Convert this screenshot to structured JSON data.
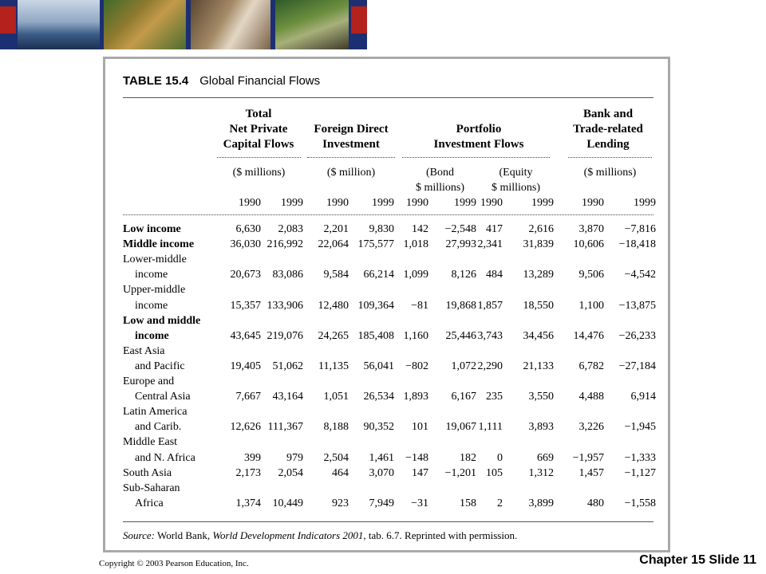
{
  "footer": {
    "copyright": "Copyright © 2003 Pearson Education, Inc.",
    "chapter": "Chapter 15 Slide 11"
  },
  "table": {
    "number": "TABLE 15.4",
    "title": "Global Financial Flows",
    "groups": [
      {
        "l1": "Total",
        "l2": "Net Private",
        "l3": "Capital Flows",
        "unit": "($ millions)"
      },
      {
        "l1": "",
        "l2": "Foreign Direct",
        "l3": "Investment",
        "unit": "($ million)"
      },
      {
        "l1": "",
        "l2": "Portfolio",
        "l3": "Investment Flows",
        "unit1a": "(Bond",
        "unit1b": "$ millions)",
        "unit2a": "(Equity",
        "unit2b": "$ millions)"
      },
      {
        "l1": "Bank and",
        "l2": "Trade-related",
        "l3": "Lending",
        "unit": "($ millions)"
      }
    ],
    "years": [
      "1990",
      "1999",
      "1990",
      "1999",
      "1990",
      "1999",
      "1990",
      "1999",
      "1990",
      "1999"
    ],
    "rows": [
      {
        "label": "Low income",
        "bold": true,
        "indent": false,
        "values": [
          "6,630",
          "2,083",
          "2,201",
          "9,830",
          "142",
          "−2,548",
          "417",
          "2,616",
          "3,870",
          "−7,816"
        ]
      },
      {
        "label": "Middle income",
        "bold": true,
        "indent": false,
        "values": [
          "36,030",
          "216,992",
          "22,064",
          "175,577",
          "1,018",
          "27,993",
          "2,341",
          "31,839",
          "10,606",
          "−18,418"
        ]
      },
      {
        "label": "Lower-middle",
        "bold": false,
        "indent": false,
        "values": []
      },
      {
        "label": "income",
        "bold": false,
        "indent": true,
        "values": [
          "20,673",
          "83,086",
          "9,584",
          "66,214",
          "1,099",
          "8,126",
          "484",
          "13,289",
          "9,506",
          "−4,542"
        ]
      },
      {
        "label": "Upper-middle",
        "bold": false,
        "indent": false,
        "values": []
      },
      {
        "label": "income",
        "bold": false,
        "indent": true,
        "values": [
          "15,357",
          "133,906",
          "12,480",
          "109,364",
          "−81",
          "19,868",
          "1,857",
          "18,550",
          "1,100",
          "−13,875"
        ]
      },
      {
        "label": "Low and middle",
        "bold": true,
        "indent": false,
        "values": []
      },
      {
        "label": "income",
        "bold": true,
        "indent": true,
        "values": [
          "43,645",
          "219,076",
          "24,265",
          "185,408",
          "1,160",
          "25,446",
          "3,743",
          "34,456",
          "14,476",
          "−26,233"
        ]
      },
      {
        "label": "East Asia",
        "bold": false,
        "indent": false,
        "values": []
      },
      {
        "label": "and Pacific",
        "bold": false,
        "indent": true,
        "values": [
          "19,405",
          "51,062",
          "11,135",
          "56,041",
          "−802",
          "1,072",
          "2,290",
          "21,133",
          "6,782",
          "−27,184"
        ]
      },
      {
        "label": "Europe and",
        "bold": false,
        "indent": false,
        "values": []
      },
      {
        "label": "Central Asia",
        "bold": false,
        "indent": true,
        "values": [
          "7,667",
          "43,164",
          "1,051",
          "26,534",
          "1,893",
          "6,167",
          "235",
          "3,550",
          "4,488",
          "6,914"
        ]
      },
      {
        "label": "Latin America",
        "bold": false,
        "indent": false,
        "values": []
      },
      {
        "label": "and Carib.",
        "bold": false,
        "indent": true,
        "values": [
          "12,626",
          "111,367",
          "8,188",
          "90,352",
          "101",
          "19,067",
          "1,111",
          "3,893",
          "3,226",
          "−1,945"
        ]
      },
      {
        "label": "Middle East",
        "bold": false,
        "indent": false,
        "values": []
      },
      {
        "label": "and N. Africa",
        "bold": false,
        "indent": true,
        "values": [
          "399",
          "979",
          "2,504",
          "1,461",
          "−148",
          "182",
          "0",
          "669",
          "−1,957",
          "−1,333"
        ]
      },
      {
        "label": "South Asia",
        "bold": false,
        "indent": false,
        "values": [
          "2,173",
          "2,054",
          "464",
          "3,070",
          "147",
          "−1,201",
          "105",
          "1,312",
          "1,457",
          "−1,127"
        ]
      },
      {
        "label": "Sub-Saharan",
        "bold": false,
        "indent": false,
        "values": []
      },
      {
        "label": "Africa",
        "bold": false,
        "indent": true,
        "values": [
          "1,374",
          "10,449",
          "923",
          "7,949",
          "−31",
          "158",
          "2",
          "3,899",
          "480",
          "−1,558"
        ]
      }
    ],
    "source_label": "Source:",
    "source_text1": " World Bank, ",
    "source_title": "World Development Indicators 2001",
    "source_text2": ", tab. 6.7. Reprinted with permission."
  }
}
